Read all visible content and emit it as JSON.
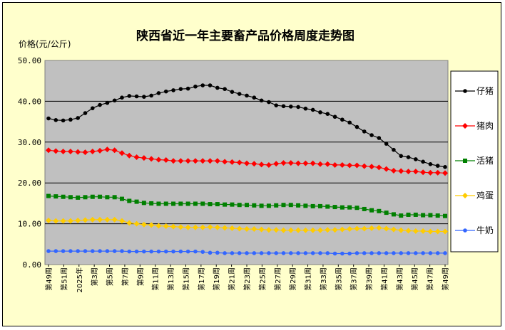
{
  "chart_data": {
    "type": "line",
    "title": "陕西省近一年主要畜产品价格周度走势图",
    "ylabel": "价格(元/公斤)",
    "xlabel": "",
    "ylim": [
      0,
      50
    ],
    "yticks": [
      "0.00",
      "10.00",
      "20.00",
      "30.00",
      "40.00",
      "50.00"
    ],
    "x_labels": [
      "第49周",
      "第51周",
      "2025年",
      "第3周",
      "第5周",
      "第7周",
      "第9周",
      "第11周",
      "第13周",
      "第15周",
      "第17周",
      "第19周",
      "第21周",
      "第23周",
      "第25周",
      "第27周",
      "第29周",
      "第31周",
      "第33周",
      "第35周",
      "第37周",
      "第39周",
      "第41周",
      "第43周",
      "第45周",
      "第47周",
      "第49周"
    ],
    "grid": true,
    "legend_position": "right",
    "series": [
      {
        "name": "仔猪",
        "color": "#000000",
        "marker": "circle",
        "values": [
          35.8,
          35.4,
          35.3,
          35.5,
          35.9,
          37.1,
          38.3,
          39.1,
          39.6,
          40.2,
          40.9,
          41.3,
          41.2,
          41.1,
          41.4,
          42.0,
          42.4,
          42.7,
          43.0,
          43.1,
          43.6,
          43.9,
          43.9,
          43.3,
          43.0,
          42.3,
          41.8,
          41.4,
          40.9,
          40.2,
          39.8,
          39.0,
          38.8,
          38.7,
          38.6,
          38.2,
          37.9,
          37.3,
          36.9,
          36.2,
          35.5,
          34.8,
          33.7,
          32.6,
          31.7,
          31.0,
          29.6,
          28.1,
          26.6,
          26.3,
          25.8,
          25.2,
          24.6,
          24.2,
          23.9
        ]
      },
      {
        "name": "猪肉",
        "color": "#ff0000",
        "marker": "diamond",
        "values": [
          28.0,
          27.8,
          27.7,
          27.7,
          27.6,
          27.5,
          27.7,
          27.9,
          28.2,
          28.0,
          27.3,
          26.7,
          26.3,
          26.1,
          25.9,
          25.7,
          25.6,
          25.4,
          25.4,
          25.4,
          25.4,
          25.4,
          25.4,
          25.4,
          25.2,
          25.1,
          25.0,
          24.8,
          24.7,
          24.5,
          24.4,
          24.7,
          24.9,
          24.9,
          24.8,
          24.8,
          24.8,
          24.6,
          24.6,
          24.4,
          24.4,
          24.3,
          24.3,
          24.1,
          24.0,
          23.8,
          23.4,
          23.0,
          22.9,
          22.8,
          22.8,
          22.6,
          22.5,
          22.5,
          22.4
        ]
      },
      {
        "name": "活猪",
        "color": "#008000",
        "marker": "square",
        "values": [
          16.8,
          16.7,
          16.6,
          16.5,
          16.4,
          16.5,
          16.6,
          16.6,
          16.5,
          16.5,
          16.1,
          15.6,
          15.4,
          15.1,
          15.0,
          14.9,
          14.9,
          14.9,
          14.9,
          14.9,
          14.9,
          14.9,
          14.8,
          14.8,
          14.7,
          14.7,
          14.6,
          14.6,
          14.5,
          14.4,
          14.4,
          14.5,
          14.6,
          14.6,
          14.5,
          14.4,
          14.3,
          14.3,
          14.2,
          14.1,
          14.0,
          14.0,
          13.9,
          13.6,
          13.3,
          13.1,
          12.7,
          12.3,
          12.0,
          12.2,
          12.2,
          12.1,
          12.1,
          12.0,
          11.9
        ]
      },
      {
        "name": "鸡蛋",
        "color": "#ffcc00",
        "marker": "diamond",
        "values": [
          10.8,
          10.7,
          10.7,
          10.7,
          10.8,
          10.9,
          11.0,
          11.0,
          11.0,
          11.0,
          10.7,
          10.2,
          10.0,
          9.8,
          9.7,
          9.5,
          9.4,
          9.3,
          9.2,
          9.1,
          9.1,
          9.1,
          9.2,
          9.1,
          9.0,
          8.9,
          8.8,
          8.7,
          8.7,
          8.6,
          8.5,
          8.5,
          8.4,
          8.4,
          8.4,
          8.4,
          8.4,
          8.4,
          8.5,
          8.5,
          8.6,
          8.7,
          8.8,
          8.8,
          8.9,
          9.0,
          8.8,
          8.6,
          8.4,
          8.3,
          8.2,
          8.2,
          8.1,
          8.1,
          8.1
        ]
      },
      {
        "name": "牛奶",
        "color": "#3366ff",
        "marker": "circle",
        "values": [
          3.3,
          3.3,
          3.3,
          3.3,
          3.3,
          3.3,
          3.3,
          3.3,
          3.3,
          3.3,
          3.3,
          3.2,
          3.2,
          3.2,
          3.2,
          3.2,
          3.2,
          3.2,
          3.2,
          3.2,
          3.2,
          3.1,
          2.9,
          2.9,
          2.8,
          2.8,
          2.8,
          2.8,
          2.8,
          2.8,
          2.8,
          2.8,
          2.8,
          2.8,
          2.8,
          2.8,
          2.8,
          2.8,
          2.8,
          2.7,
          2.7,
          2.7,
          2.8,
          2.8,
          2.8,
          2.8,
          2.8,
          2.8,
          2.8,
          2.8,
          2.8,
          2.8,
          2.8,
          2.8,
          2.8
        ]
      }
    ]
  }
}
